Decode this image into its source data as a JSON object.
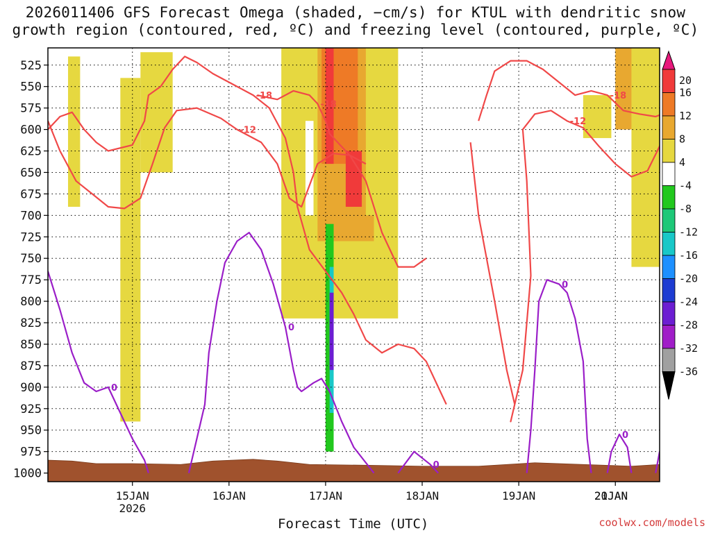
{
  "chart_data": {
    "type": "heatmap",
    "title_line1": "2026011406 GFS Forecast Omega (shaded, −cm/s) for KTUL with dendritic snow",
    "title_line2": "growth region (contoured, red, ºC) and freezing level (contoured, purple, ºC)",
    "xlabel": "Forecast Time (UTC)",
    "ylabel": "Pressure (hPa)",
    "credit": "coolwx.com/models",
    "x_range_hours": [
      -21,
      131
    ],
    "y_range_hpa": [
      505,
      1010
    ],
    "x_ticks": [
      {
        "label": "15JAN",
        "sub": "2026",
        "hour": 0
      },
      {
        "label": "16JAN",
        "sub": "",
        "hour": 24
      },
      {
        "label": "17JAN",
        "sub": "",
        "hour": 48
      },
      {
        "label": "18JAN",
        "sub": "",
        "hour": 72
      },
      {
        "label": "19JAN",
        "sub": "",
        "hour": 96
      },
      {
        "label": "20JAN",
        "sub": "",
        "hour": 120
      },
      {
        "label": "21JAN",
        "sub": "",
        "hour": 144
      }
    ],
    "y_ticks": [
      "525",
      "550",
      "575",
      "600",
      "625",
      "650",
      "675",
      "700",
      "725",
      "750",
      "775",
      "800",
      "825",
      "850",
      "875",
      "900",
      "925",
      "950",
      "975",
      "1000"
    ],
    "colorbar": {
      "labels": [
        "20",
        "16",
        "12",
        "8",
        "4",
        "-4",
        "-8",
        "-12",
        "-16",
        "-20",
        "-24",
        "-28",
        "-32",
        "-36"
      ],
      "colors": [
        "#e8187c",
        "#f03a3a",
        "#ee7a26",
        "#e8a830",
        "#e6d840",
        "#ffffff",
        "#22c81e",
        "#1ec878",
        "#19c8c8",
        "#1e90ff",
        "#1e3cd2",
        "#6c1ed2",
        "#a01ec8",
        "#a0a0a0",
        "#000000"
      ]
    },
    "shading": [
      {
        "name": "ascent-0",
        "level": "4",
        "x_hours": [
          -16,
          -13
        ],
        "p_range": [
          515,
          690
        ]
      },
      {
        "name": "ascent-1",
        "level": "4",
        "x_hours": [
          -3,
          2
        ],
        "p_range": [
          540,
          940
        ]
      },
      {
        "name": "ascent-2",
        "level": "4",
        "x_hours": [
          2,
          10
        ],
        "p_range": [
          510,
          650
        ]
      },
      {
        "name": "ascent-3",
        "level": "4",
        "x_hours": [
          37,
          66
        ],
        "p_range": [
          505,
          820
        ]
      },
      {
        "name": "ascent-4",
        "level": "8",
        "x_hours": [
          46,
          60
        ],
        "p_range": [
          505,
          730
        ]
      },
      {
        "name": "ascent-5",
        "level": "12",
        "x_hours": [
          47,
          56
        ],
        "p_range": [
          505,
          640
        ]
      },
      {
        "name": "ascent-6",
        "level": "16",
        "x_hours": [
          48,
          50
        ],
        "p_range": [
          505,
          640
        ]
      },
      {
        "name": "ascent-7",
        "level": "16",
        "x_hours": [
          53,
          57
        ],
        "p_range": [
          625,
          690
        ]
      },
      {
        "name": "ascent-8",
        "level": "4",
        "x_hours": [
          58,
          66
        ],
        "p_range": [
          505,
          700
        ]
      },
      {
        "name": "ascent-9",
        "level": "4",
        "x_hours": [
          112,
          119
        ],
        "p_range": [
          560,
          610
        ]
      },
      {
        "name": "ascent-10",
        "level": "8",
        "x_hours": [
          120,
          125
        ],
        "p_range": [
          505,
          600
        ]
      },
      {
        "name": "ascent-11",
        "level": "4",
        "x_hours": [
          124,
          131
        ],
        "p_range": [
          505,
          760
        ]
      },
      {
        "name": "descent-0",
        "level": "-4",
        "x_hours": [
          26,
          30
        ],
        "p_range": [
          505,
          570
        ]
      },
      {
        "name": "descent-1",
        "level": "-4",
        "x_hours": [
          43,
          45
        ],
        "p_range": [
          590,
          700
        ]
      },
      {
        "name": "descent-2",
        "level": "-8",
        "x_hours": [
          48,
          50
        ],
        "p_range": [
          710,
          975
        ]
      },
      {
        "name": "descent-3",
        "level": "-16",
        "x_hours": [
          49,
          50
        ],
        "p_range": [
          760,
          930
        ]
      },
      {
        "name": "descent-4",
        "level": "-28",
        "x_hours": [
          49,
          50
        ],
        "p_range": [
          790,
          880
        ]
      },
      {
        "name": "descent-5",
        "level": "-4",
        "x_hours": [
          28,
          31
        ],
        "p_range": [
          830,
          950
        ]
      },
      {
        "name": "descent-6",
        "level": "-4",
        "x_hours": [
          74,
          75
        ],
        "p_range": [
          790,
          930
        ]
      },
      {
        "name": "descent-7",
        "level": "-4",
        "x_hours": [
          97,
          99
        ],
        "p_range": [
          840,
          940
        ]
      },
      {
        "name": "descent-8",
        "level": "-4",
        "x_hours": [
          102,
          106
        ],
        "p_range": [
          590,
          650
        ]
      },
      {
        "name": "descent-9",
        "level": "-4",
        "x_hours": [
          106,
          111
        ],
        "p_range": [
          620,
          710
        ]
      },
      {
        "name": "descent-10",
        "level": "-4",
        "x_hours": [
          129,
          131
        ],
        "p_range": [
          825,
          895
        ]
      }
    ],
    "contours": [
      {
        "name": "dgz-minus18-left",
        "label": "-18",
        "color": "#f04848",
        "points": [
          [
            -21,
            600
          ],
          [
            -18,
            585
          ],
          [
            -15,
            580
          ],
          [
            -12,
            600
          ],
          [
            -9,
            615
          ],
          [
            -6,
            625
          ],
          [
            0,
            618
          ],
          [
            3,
            590
          ],
          [
            4,
            560
          ],
          [
            7,
            550
          ],
          [
            10,
            530
          ],
          [
            13,
            515
          ],
          [
            16,
            522
          ],
          [
            20,
            535
          ],
          [
            24,
            545
          ],
          [
            30,
            560
          ],
          [
            34,
            575
          ],
          [
            38,
            610
          ],
          [
            40,
            650
          ],
          [
            41,
            690
          ],
          [
            44,
            740
          ],
          [
            48,
            765
          ],
          [
            52,
            790
          ],
          [
            55,
            815
          ],
          [
            58,
            845
          ],
          [
            62,
            860
          ],
          [
            66,
            850
          ],
          [
            70,
            855
          ],
          [
            73,
            870
          ],
          [
            76,
            900
          ],
          [
            78,
            920
          ]
        ]
      },
      {
        "name": "dgz-minus18-mid",
        "label": "-18",
        "color": "#f04848",
        "points": [
          [
            58,
            640
          ],
          [
            54,
            630
          ],
          [
            51,
            615
          ],
          [
            49,
            605
          ],
          [
            48,
            590
          ],
          [
            46,
            570
          ],
          [
            44,
            560
          ],
          [
            40,
            555
          ],
          [
            36,
            565
          ],
          [
            31,
            560
          ]
        ]
      },
      {
        "name": "dgz-minus12-left",
        "label": "-12",
        "color": "#f04848",
        "points": [
          [
            -21,
            590
          ],
          [
            -18,
            625
          ],
          [
            -14,
            660
          ],
          [
            -10,
            675
          ],
          [
            -6,
            690
          ],
          [
            -2,
            692
          ],
          [
            2,
            680
          ],
          [
            5,
            640
          ],
          [
            8,
            598
          ],
          [
            11,
            578
          ],
          [
            16,
            575
          ],
          [
            22,
            587
          ],
          [
            26,
            600
          ],
          [
            32,
            615
          ],
          [
            36,
            640
          ],
          [
            39,
            680
          ],
          [
            42,
            690
          ],
          [
            46,
            640
          ],
          [
            50,
            628
          ],
          [
            54,
            630
          ],
          [
            58,
            660
          ],
          [
            62,
            720
          ],
          [
            66,
            760
          ],
          [
            70,
            760
          ],
          [
            73,
            750
          ]
        ]
      },
      {
        "name": "dgz-minus18-right",
        "label": "-18",
        "color": "#f04848",
        "points": [
          [
            86,
            590
          ],
          [
            88,
            560
          ],
          [
            90,
            532
          ],
          [
            94,
            520
          ],
          [
            98,
            520
          ],
          [
            102,
            530
          ],
          [
            106,
            545
          ],
          [
            110,
            560
          ],
          [
            114,
            555
          ],
          [
            118,
            560
          ],
          [
            122,
            578
          ],
          [
            126,
            582
          ],
          [
            130,
            585
          ],
          [
            134,
            578
          ],
          [
            138,
            555
          ],
          [
            142,
            542
          ],
          [
            146,
            525
          ],
          [
            150,
            512
          ],
          [
            153,
            508
          ]
        ]
      },
      {
        "name": "dgz-minus12-right",
        "label": "-12",
        "color": "#f04848",
        "points": [
          [
            84,
            615
          ],
          [
            86,
            700
          ],
          [
            90,
            800
          ],
          [
            93,
            880
          ],
          [
            95,
            920
          ],
          [
            94,
            940
          ],
          [
            97,
            880
          ],
          [
            99,
            770
          ],
          [
            98,
            660
          ],
          [
            97,
            600
          ],
          [
            100,
            582
          ],
          [
            104,
            578
          ],
          [
            108,
            590
          ],
          [
            112,
            598
          ],
          [
            116,
            620
          ],
          [
            120,
            640
          ],
          [
            124,
            655
          ],
          [
            128,
            648
          ],
          [
            132,
            610
          ],
          [
            136,
            600
          ],
          [
            140,
            580
          ],
          [
            144,
            567
          ],
          [
            148,
            560
          ],
          [
            152,
            555
          ]
        ]
      },
      {
        "name": "freezing-level-1",
        "label": "0",
        "color": "#9a1ec8",
        "points": [
          [
            -21,
            765
          ],
          [
            -18,
            810
          ],
          [
            -15,
            860
          ],
          [
            -12,
            895
          ],
          [
            -9,
            905
          ],
          [
            -6,
            900
          ],
          [
            -3,
            930
          ],
          [
            0,
            960
          ],
          [
            3,
            985
          ],
          [
            4,
            1000
          ]
        ]
      },
      {
        "name": "freezing-level-2",
        "label": "0",
        "color": "#9a1ec8",
        "points": [
          [
            14,
            1000
          ],
          [
            16,
            960
          ],
          [
            18,
            920
          ],
          [
            19,
            860
          ],
          [
            21,
            800
          ],
          [
            23,
            755
          ],
          [
            26,
            730
          ],
          [
            29,
            720
          ],
          [
            32,
            740
          ],
          [
            35,
            780
          ],
          [
            38,
            830
          ],
          [
            40,
            880
          ],
          [
            41,
            900
          ],
          [
            42,
            905
          ],
          [
            45,
            895
          ],
          [
            47,
            890
          ],
          [
            49,
            905
          ],
          [
            52,
            940
          ],
          [
            55,
            970
          ],
          [
            60,
            1000
          ]
        ]
      },
      {
        "name": "freezing-level-3",
        "label": "0",
        "color": "#9a1ec8",
        "points": [
          [
            66,
            1000
          ],
          [
            70,
            975
          ],
          [
            74,
            990
          ],
          [
            76,
            1000
          ]
        ]
      },
      {
        "name": "freezing-level-4",
        "label": "0",
        "color": "#9a1ec8",
        "points": [
          [
            98,
            1000
          ],
          [
            99,
            950
          ],
          [
            100,
            880
          ],
          [
            101,
            800
          ],
          [
            103,
            775
          ],
          [
            106,
            780
          ],
          [
            108,
            790
          ],
          [
            110,
            820
          ],
          [
            112,
            870
          ],
          [
            113,
            960
          ],
          [
            114,
            1000
          ]
        ]
      },
      {
        "name": "freezing-level-5",
        "label": "0",
        "color": "#9a1ec8",
        "points": [
          [
            118,
            1000
          ],
          [
            119,
            975
          ],
          [
            121,
            955
          ],
          [
            123,
            970
          ],
          [
            124,
            1000
          ]
        ]
      },
      {
        "name": "freezing-level-6",
        "label": "0",
        "color": "#9a1ec8",
        "points": [
          [
            130,
            1000
          ],
          [
            131,
            975
          ],
          [
            133,
            960
          ],
          [
            134,
            900
          ],
          [
            136,
            800
          ],
          [
            138,
            740
          ],
          [
            141,
            720
          ],
          [
            145,
            700
          ],
          [
            149,
            690
          ],
          [
            152,
            685
          ],
          [
            153,
            700
          ],
          [
            154,
            725
          ]
        ]
      }
    ]
  }
}
